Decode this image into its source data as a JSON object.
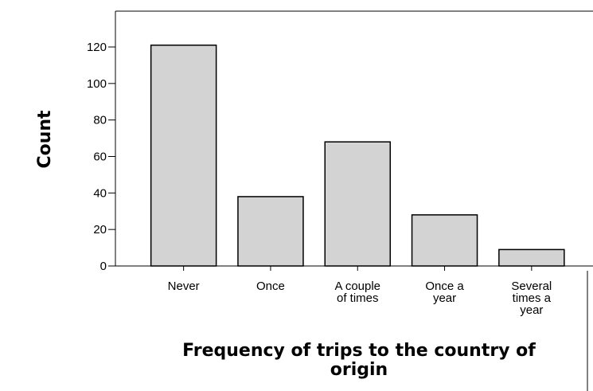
{
  "chart_data": {
    "type": "bar",
    "title": "",
    "xlabel": "Frequency of trips to the country of origin",
    "ylabel": "Count",
    "categories": [
      "Never",
      "Once",
      "A couple of times",
      "Once a year",
      "Several times a year"
    ],
    "category_lines": [
      [
        "Never"
      ],
      [
        "Once"
      ],
      [
        "A couple",
        "of times"
      ],
      [
        "Once a",
        "year"
      ],
      [
        "Several",
        "times a",
        "year"
      ]
    ],
    "values": [
      121,
      38,
      68,
      28,
      9
    ],
    "ylim": [
      0,
      130
    ],
    "yticks": [
      0,
      20,
      40,
      60,
      80,
      100,
      120
    ],
    "bar_color": "#d3d3d3",
    "bar_stroke": "#000000",
    "grid": false,
    "legend": "none"
  }
}
